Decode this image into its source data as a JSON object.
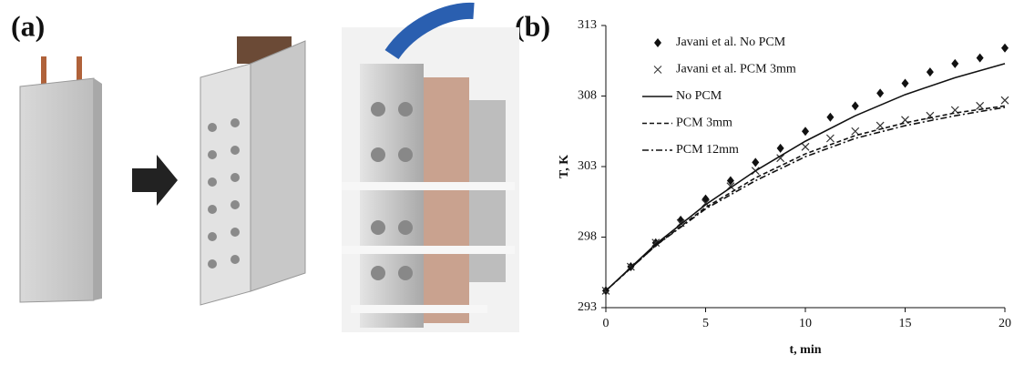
{
  "panel_labels": [
    "(a)",
    "(b)"
  ],
  "chart_data": {
    "type": "line",
    "xlabel": "t, min",
    "ylabel": "T, K",
    "xlim": [
      0,
      20
    ],
    "xticks": [
      0,
      5,
      10,
      15,
      20
    ],
    "ylim": [
      293,
      313
    ],
    "yticks": [
      293,
      298,
      303,
      308,
      313
    ],
    "legend": "upper left",
    "series": [
      {
        "name": "Javani et al. No PCM",
        "marker": "diamond",
        "color": "#111111",
        "x": [
          0,
          1.25,
          2.5,
          3.75,
          5,
          6.25,
          7.5,
          8.75,
          10,
          11.25,
          12.5,
          13.75,
          15,
          16.25,
          17.5,
          18.75,
          20
        ],
        "values": [
          294.2,
          295.9,
          297.6,
          299.2,
          300.7,
          302.0,
          303.3,
          304.3,
          305.5,
          306.5,
          307.3,
          308.2,
          308.9,
          309.7,
          310.3,
          310.7,
          311.4
        ]
      },
      {
        "name": "Javani et al. PCM 3mm",
        "marker": "x",
        "color": "#333333",
        "x": [
          0,
          1.25,
          2.5,
          3.75,
          5,
          6.25,
          7.5,
          8.75,
          10,
          11.25,
          12.5,
          13.75,
          15,
          16.25,
          17.5,
          18.75,
          20
        ],
        "values": [
          294.2,
          295.9,
          297.6,
          299.0,
          300.4,
          301.6,
          302.7,
          303.6,
          304.4,
          305.0,
          305.5,
          305.9,
          306.3,
          306.6,
          307.0,
          307.3,
          307.7
        ]
      },
      {
        "name": "No PCM",
        "dash": "solid",
        "color": "#111111",
        "x": [
          0,
          2.5,
          5,
          7.5,
          10,
          12.5,
          15,
          17.5,
          20
        ],
        "values": [
          294.2,
          297.5,
          300.3,
          302.7,
          304.8,
          306.6,
          308.1,
          309.3,
          310.3
        ]
      },
      {
        "name": "PCM 3mm",
        "dash": "dashed",
        "color": "#111111",
        "x": [
          0,
          2.5,
          5,
          7.5,
          10,
          12.5,
          15,
          17.5,
          20
        ],
        "values": [
          294.2,
          297.4,
          300.1,
          302.2,
          303.9,
          305.2,
          306.1,
          306.8,
          307.3
        ]
      },
      {
        "name": "PCM 12mm",
        "dash": "dashdot",
        "color": "#111111",
        "x": [
          0,
          2.5,
          5,
          7.5,
          10,
          12.5,
          15,
          17.5,
          20
        ],
        "values": [
          294.2,
          297.4,
          300.0,
          302.0,
          303.7,
          305.0,
          305.9,
          306.6,
          307.2
        ]
      }
    ]
  }
}
